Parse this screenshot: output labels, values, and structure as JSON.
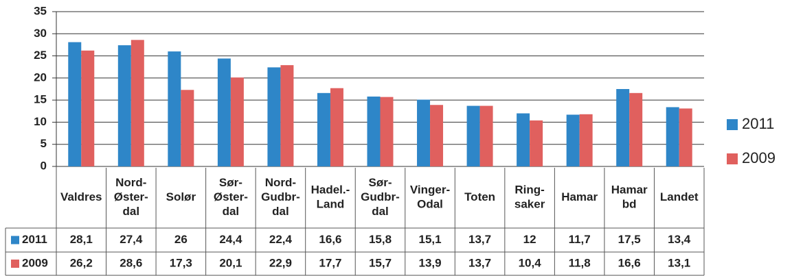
{
  "chart_data": {
    "type": "bar",
    "categories": [
      "Valdres",
      "Nord-Øster-dal",
      "Solør",
      "Sør-Øster-dal",
      "Nord-Gudbr-dal",
      "Hadel.-Land",
      "Sør-Gudbr-dal",
      "Vinger-Odal",
      "Toten",
      "Ring-saker",
      "Hamar",
      "Hamar bd",
      "Landet"
    ],
    "series": [
      {
        "name": "2011",
        "color": "#2e86c8",
        "values": [
          28.1,
          27.4,
          26,
          24.4,
          22.4,
          16.6,
          15.8,
          15.1,
          13.7,
          12,
          11.7,
          17.5,
          13.4
        ],
        "value_labels": [
          "28,1",
          "27,4",
          "26",
          "24,4",
          "22,4",
          "16,6",
          "15,8",
          "15,1",
          "13,7",
          "12",
          "11,7",
          "17,5",
          "13,4"
        ]
      },
      {
        "name": "2009",
        "color": "#e0605e",
        "values": [
          26.2,
          28.6,
          17.3,
          20.1,
          22.9,
          17.7,
          15.7,
          13.9,
          13.7,
          10.4,
          11.8,
          16.6,
          13.1
        ],
        "value_labels": [
          "26,2",
          "28,6",
          "17,3",
          "20,1",
          "22,9",
          "17,7",
          "15,7",
          "13,9",
          "13,7",
          "10,4",
          "11,8",
          "16,6",
          "13,1"
        ]
      }
    ],
    "ylim": [
      0,
      35
    ],
    "yticks": [
      0,
      5,
      10,
      15,
      20,
      25,
      30,
      35
    ],
    "grid": true,
    "legend": "right"
  }
}
